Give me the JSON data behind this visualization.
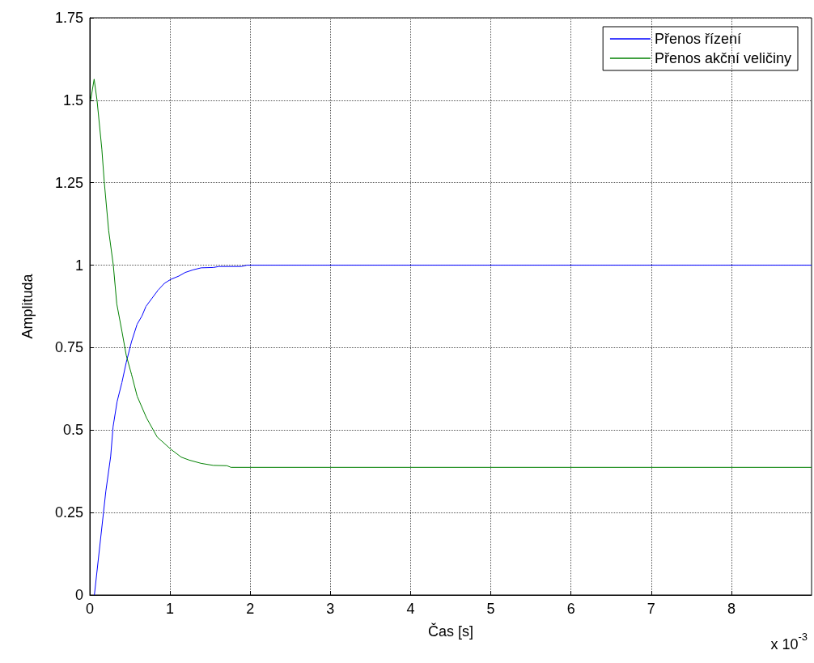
{
  "chart_data": {
    "type": "line",
    "xlabel": "Čas [s]",
    "ylabel": "Amplituda",
    "annotations": [
      "x 10$^{-3}$"
    ],
    "xlim": [
      0,
      9
    ],
    "xticks": [
      0,
      1,
      2,
      3,
      4,
      5,
      6,
      7,
      8
    ],
    "ylim": [
      0,
      1.75
    ],
    "yticks": [
      0,
      0.25,
      0.5,
      0.75,
      1,
      1.25,
      1.5,
      1.75
    ],
    "grid": true,
    "legend": "top right",
    "marker": "none",
    "line_style": "solid",
    "series": [
      {
        "name": "Přenos řízení",
        "color": "#0000ff",
        "x": [
          0.057,
          0.17,
          0.2,
          0.26,
          0.29,
          0.34,
          0.4,
          0.455,
          0.52,
          0.59,
          0.65,
          0.7,
          0.85,
          0.93,
          1.01,
          1.11,
          1.19,
          1.29,
          1.39,
          1.54,
          1.61,
          1.89,
          1.96,
          9
        ],
        "values": [
          0,
          0.249,
          0.315,
          0.42,
          0.51,
          0.586,
          0.644,
          0.706,
          0.768,
          0.821,
          0.846,
          0.875,
          0.924,
          0.945,
          0.957,
          0.967,
          0.978,
          0.986,
          0.992,
          0.993,
          0.996,
          0.996,
          1,
          1
        ]
      },
      {
        "name": "Přenos akční veličiny",
        "color": "#008000",
        "x": [
          0.01,
          0.054,
          0.09,
          0.15,
          0.18,
          0.235,
          0.293,
          0.336,
          0.4,
          0.455,
          0.52,
          0.59,
          0.707,
          0.84,
          1.01,
          1.14,
          1.24,
          1.39,
          1.54,
          1.71,
          1.76,
          9
        ],
        "values": [
          1.5,
          1.564,
          1.5,
          1.352,
          1.253,
          1.105,
          1,
          0.883,
          0.8,
          0.726,
          0.669,
          0.603,
          0.537,
          0.479,
          0.442,
          0.418,
          0.409,
          0.399,
          0.393,
          0.392,
          0.387,
          0.387
        ]
      }
    ]
  }
}
